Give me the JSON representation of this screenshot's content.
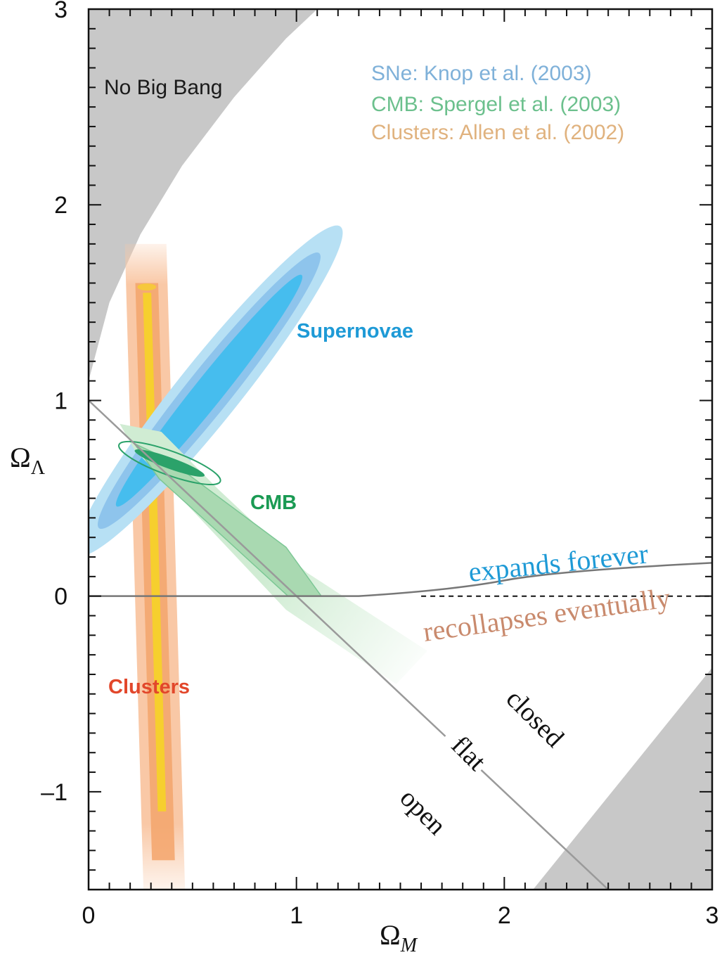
{
  "chart_data": {
    "type": "scatter",
    "title": "",
    "xlabel": "Ω",
    "xlabel_sub": "M",
    "ylabel": "Ω",
    "ylabel_sub": "Λ",
    "xlim": [
      0,
      3
    ],
    "ylim": [
      -1.5,
      3
    ],
    "xticks": [
      {
        "value": 0,
        "label": "0"
      },
      {
        "value": 1,
        "label": "1"
      },
      {
        "value": 2,
        "label": "2"
      },
      {
        "value": 3,
        "label": "3"
      }
    ],
    "yticks": [
      {
        "value": -1,
        "label": "–1"
      },
      {
        "value": 0,
        "label": "0"
      },
      {
        "value": 1,
        "label": "1"
      },
      {
        "value": 2,
        "label": "2"
      },
      {
        "value": 3,
        "label": "3"
      }
    ],
    "minor_tick_step": 0.1,
    "legend_placement": "top-right",
    "legend": [
      {
        "text": "SNe:   Knop et al. (2003)",
        "color": "#7fb1d9"
      },
      {
        "text": "CMB:  Spergel et al.  (2003)",
        "color": "#6cc08d"
      },
      {
        "text": "Clusters: Allen et al.  (2002)",
        "color": "#e0b27e"
      }
    ],
    "regions": [
      {
        "label": "No Big Bang",
        "color": "#c8c8c8"
      },
      {
        "label": "",
        "color": "#c8c8c8"
      }
    ],
    "datasets": [
      {
        "label": "Supernovae",
        "color": "#1e9ad6",
        "center": [
          0.58,
          1.05
        ],
        "angle_deg": 53,
        "contours": [
          {
            "semi_major": 1.05,
            "semi_minor": 0.155,
            "color": "#b7e0f4"
          },
          {
            "semi_major": 0.88,
            "semi_minor": 0.11,
            "color": "#8ec4ec"
          },
          {
            "semi_major": 0.74,
            "semi_minor": 0.072,
            "color": "#46bdee"
          }
        ]
      },
      {
        "label": "CMB",
        "color": "#1a9a53",
        "outer_color": "#d0ecd3",
        "inner_color": "#a9d9b1",
        "core_color": "#2ba26a",
        "outer_band": [
          [
            0.15,
            0.88
          ],
          [
            0.35,
            0.84
          ],
          [
            0.62,
            0.55
          ],
          [
            1.05,
            0.12
          ],
          [
            1.63,
            -0.28
          ],
          [
            1.48,
            -0.45
          ],
          [
            0.95,
            -0.07
          ],
          [
            0.4,
            0.55
          ],
          [
            0.22,
            0.75
          ]
        ],
        "inner_band": [
          [
            0.22,
            0.78
          ],
          [
            0.38,
            0.7
          ],
          [
            0.95,
            0.25
          ],
          [
            1.12,
            0.0
          ],
          [
            0.96,
            0.0
          ],
          [
            0.6,
            0.35
          ],
          [
            0.34,
            0.6
          ]
        ],
        "core_ellipse": {
          "center": [
            0.39,
            0.68
          ],
          "semi_major": 0.18,
          "semi_minor": 0.025,
          "angle_deg": -21
        }
      },
      {
        "label": "Clusters",
        "color": "#e2472b",
        "outer_color": "#f9c8a6",
        "mid_color": "#f3a46b",
        "core_color": "#f6cf2e",
        "band_centerline": [
          [
            0.28,
            1.6
          ],
          [
            0.36,
            -1.35
          ]
        ],
        "band_halfwidths": [
          0.1,
          0.055,
          0.02
        ]
      }
    ],
    "lines": [
      {
        "label": "flat",
        "points": [
          [
            0,
            1
          ],
          [
            2.5,
            -1.5
          ]
        ],
        "color": "#9a9a9a"
      },
      {
        "label": "expands forever",
        "color": "#1e9ad6",
        "points": [
          [
            0,
            0
          ],
          [
            1.3,
            0
          ],
          [
            2,
            0.08
          ],
          [
            3,
            0.17
          ]
        ],
        "line_color": "#777777"
      },
      {
        "label": "recollapses eventually",
        "color": "#c98a6d",
        "points": [
          [
            1.6,
            0
          ],
          [
            3,
            0
          ]
        ],
        "style": "dashed"
      }
    ],
    "annotations": [
      {
        "text": "closed",
        "at": [
          2.3,
          -0.65
        ],
        "angle_deg": 45
      },
      {
        "text": "flat",
        "at": [
          1.85,
          -0.85
        ],
        "angle_deg": 45
      },
      {
        "text": "open",
        "at": [
          1.6,
          -1.15
        ],
        "angle_deg": 45
      }
    ]
  }
}
